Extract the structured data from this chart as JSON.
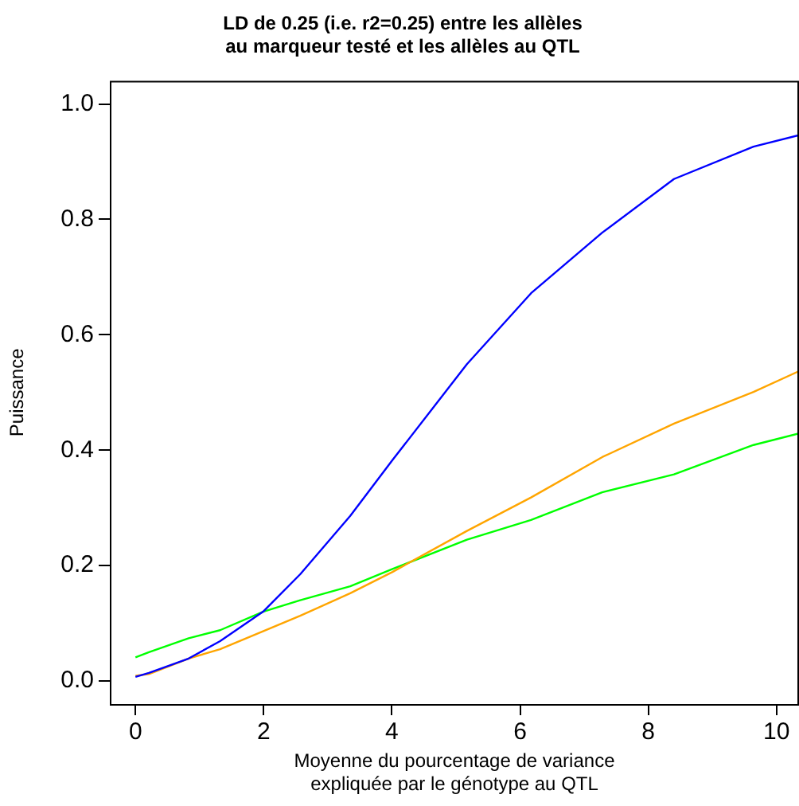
{
  "chart_data": {
    "type": "line",
    "title": "LD de 0.25 (i.e. r2=0.25) entre les allèles\nau marqueur testé et les allèles au QTL",
    "xlabel": "Moyenne du pourcentage de variance\nexpliquée par le génotype au QTL",
    "ylabel": "Puissance",
    "x": [
      0,
      0.21,
      0.83,
      1.32,
      1.99,
      2.57,
      3.35,
      4.01,
      5.17,
      6.17,
      7.28,
      8.4,
      9.64,
      10.35
    ],
    "series": [
      {
        "color": "#0000ff",
        "values": [
          0.007,
          0.014,
          0.039,
          0.069,
          0.12,
          0.185,
          0.286,
          0.383,
          0.549,
          0.672,
          0.777,
          0.87,
          0.926,
          0.946
        ]
      },
      {
        "color": "#ffa500",
        "values": [
          0.009,
          0.012,
          0.039,
          0.055,
          0.086,
          0.113,
          0.152,
          0.189,
          0.26,
          0.318,
          0.388,
          0.446,
          0.501,
          0.537
        ]
      },
      {
        "color": "#00ff00",
        "values": [
          0.041,
          0.05,
          0.074,
          0.088,
          0.12,
          0.14,
          0.164,
          0.194,
          0.245,
          0.279,
          0.327,
          0.358,
          0.409,
          0.429
        ]
      }
    ],
    "xlim": [
      -0.4,
      10.35
    ],
    "ylim": [
      -0.04,
      1.04
    ],
    "xticks": [
      0,
      2,
      4,
      6,
      8,
      10
    ],
    "yticks": [
      {
        "value": 0,
        "label": "0.0"
      },
      {
        "value": 0.2,
        "label": "0.2"
      },
      {
        "value": 0.4,
        "label": "0.4"
      },
      {
        "value": 0.6,
        "label": "0.6"
      },
      {
        "value": 0.8,
        "label": "0.8"
      },
      {
        "value": 1,
        "label": "1.0"
      }
    ],
    "grid": false,
    "legend": false,
    "marker": "none",
    "line_style": "solid"
  }
}
